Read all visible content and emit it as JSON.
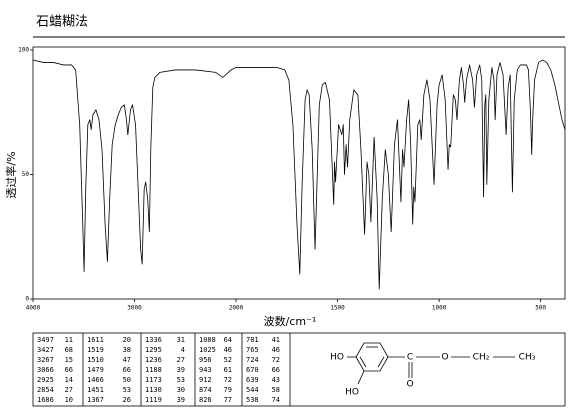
{
  "header": {
    "title": "石蜡糊法"
  },
  "chart_data": {
    "type": "line",
    "color": "#000000",
    "xlabel": "波数/cm⁻¹",
    "ylabel": "透过率/%",
    "xlim": [
      4000,
      380
    ],
    "xticks": [
      4000,
      3000,
      2000,
      1500,
      1000,
      500
    ],
    "ylim": [
      0,
      100
    ],
    "yticks": [
      0,
      50,
      100
    ],
    "x": [
      4000,
      3900,
      3800,
      3700,
      3620,
      3580,
      3540,
      3510,
      3497,
      3480,
      3460,
      3440,
      3427,
      3410,
      3380,
      3350,
      3320,
      3290,
      3267,
      3245,
      3220,
      3190,
      3160,
      3130,
      3100,
      3080,
      3066,
      3040,
      3020,
      2990,
      2960,
      2940,
      2925,
      2905,
      2890,
      2870,
      2854,
      2840,
      2820,
      2800,
      2750,
      2600,
      2400,
      2200,
      2130,
      2050,
      2000,
      1900,
      1800,
      1760,
      1740,
      1720,
      1700,
      1686,
      1675,
      1660,
      1650,
      1640,
      1625,
      1611,
      1600,
      1590,
      1575,
      1560,
      1540,
      1519,
      1515,
      1510,
      1495,
      1479,
      1472,
      1466,
      1458,
      1451,
      1440,
      1420,
      1400,
      1385,
      1367,
      1355,
      1346,
      1336,
      1320,
      1305,
      1295,
      1280,
      1265,
      1250,
      1236,
      1220,
      1205,
      1188,
      1180,
      1173,
      1160,
      1150,
      1140,
      1130,
      1125,
      1119,
      1105,
      1095,
      1088,
      1075,
      1060,
      1045,
      1025,
      1010,
      1000,
      985,
      970,
      956,
      950,
      943,
      930,
      920,
      912,
      900,
      890,
      880,
      874,
      865,
      850,
      835,
      826,
      815,
      800,
      790,
      781,
      775,
      770,
      765,
      755,
      740,
      730,
      724,
      715,
      700,
      685,
      670,
      660,
      650,
      639,
      630,
      615,
      600,
      570,
      560,
      550,
      544,
      540,
      538,
      530,
      510,
      490,
      470,
      450,
      430,
      410,
      395,
      380
    ],
    "values": [
      96,
      95,
      95,
      94,
      94,
      92,
      70,
      30,
      11,
      45,
      70,
      72,
      68,
      74,
      76,
      72,
      60,
      30,
      15,
      40,
      62,
      70,
      74,
      77,
      78,
      72,
      66,
      76,
      78,
      70,
      40,
      20,
      14,
      44,
      47,
      40,
      27,
      60,
      85,
      89,
      91,
      92,
      92,
      91,
      89,
      92,
      93,
      93,
      93,
      92,
      88,
      70,
      30,
      10,
      45,
      80,
      84,
      82,
      60,
      20,
      50,
      78,
      86,
      87,
      80,
      38,
      55,
      47,
      70,
      66,
      70,
      50,
      62,
      53,
      72,
      84,
      82,
      60,
      26,
      55,
      50,
      31,
      65,
      40,
      4,
      40,
      60,
      50,
      27,
      62,
      72,
      39,
      60,
      53,
      72,
      80,
      62,
      30,
      45,
      39,
      70,
      72,
      64,
      82,
      88,
      80,
      46,
      78,
      86,
      90,
      80,
      52,
      62,
      61,
      82,
      80,
      72,
      88,
      93,
      86,
      79,
      88,
      94,
      88,
      77,
      90,
      94,
      88,
      41,
      78,
      82,
      46,
      80,
      93,
      88,
      72,
      90,
      95,
      90,
      66,
      85,
      90,
      43,
      80,
      92,
      94,
      94,
      92,
      75,
      58,
      70,
      74,
      88,
      95,
      96,
      95,
      92,
      86,
      78,
      72,
      68
    ]
  },
  "peak_table": {
    "columns": [
      [
        [
          3497,
          11
        ],
        [
          3427,
          68
        ],
        [
          3267,
          15
        ],
        [
          3066,
          66
        ],
        [
          2925,
          14
        ],
        [
          2854,
          27
        ],
        [
          1686,
          10
        ]
      ],
      [
        [
          1611,
          20
        ],
        [
          1519,
          38
        ],
        [
          1510,
          47
        ],
        [
          1479,
          66
        ],
        [
          1466,
          50
        ],
        [
          1451,
          53
        ],
        [
          1367,
          26
        ]
      ],
      [
        [
          1336,
          31
        ],
        [
          1295,
          4
        ],
        [
          1236,
          27
        ],
        [
          1188,
          39
        ],
        [
          1173,
          53
        ],
        [
          1130,
          30
        ],
        [
          1119,
          39
        ]
      ],
      [
        [
          1088,
          64
        ],
        [
          1025,
          46
        ],
        [
          956,
          52
        ],
        [
          943,
          61
        ],
        [
          912,
          72
        ],
        [
          874,
          79
        ],
        [
          826,
          77
        ]
      ],
      [
        [
          781,
          41
        ],
        [
          765,
          46
        ],
        [
          724,
          72
        ],
        [
          670,
          66
        ],
        [
          639,
          43
        ],
        [
          544,
          58
        ],
        [
          538,
          74
        ]
      ]
    ]
  },
  "structure": {
    "labels": [
      "HO",
      "HO",
      "C",
      "O",
      "O",
      "CH₂",
      "CH₃"
    ]
  }
}
